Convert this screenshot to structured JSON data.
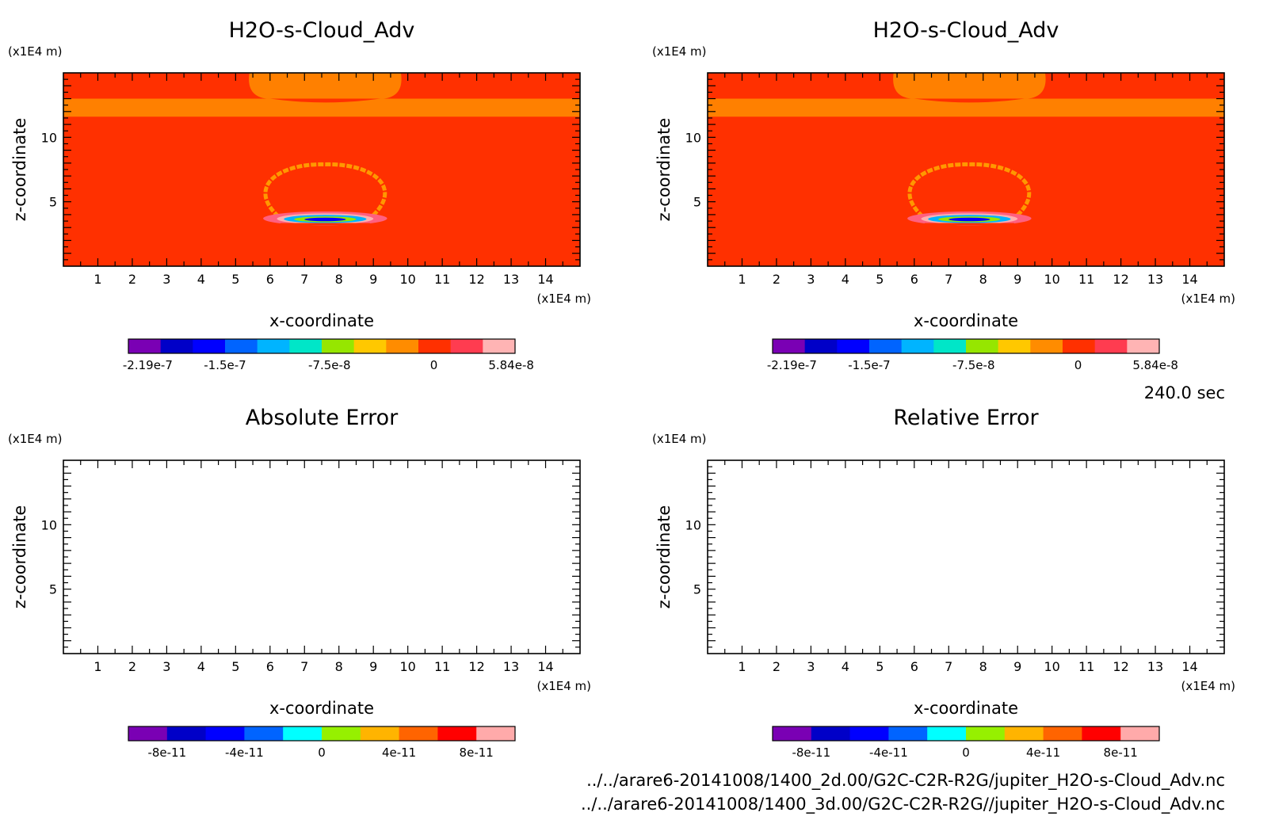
{
  "figure": {
    "time_label": "240.0 sec",
    "file_lines": [
      "../../arare6-20141008/1400_2d.00/G2C-C2R-R2G/jupiter_H2O-s-Cloud_Adv.nc",
      "../../arare6-20141008/1400_3d.00/G2C-C2R-R2G//jupiter_H2O-s-Cloud_Adv.nc"
    ]
  },
  "colors": {
    "background_field": "#ff3000",
    "cloud_band": "#ff8000",
    "contour_ring": "#ff9800"
  },
  "chart_data": [
    {
      "type": "heatmap",
      "title": "H2O-s-Cloud_Adv",
      "xlabel": "x-coordinate",
      "ylabel": "z-coordinate",
      "x_unit": "(x1E4 m)",
      "y_unit": "(x1E4 m)",
      "xlim": [
        0,
        15
      ],
      "ylim": [
        0,
        15
      ],
      "x_ticks": [
        "1",
        "2",
        "3",
        "4",
        "5",
        "6",
        "7",
        "8",
        "9",
        "10",
        "11",
        "12",
        "13",
        "14"
      ],
      "y_ticks": [
        "5",
        "10"
      ],
      "colorbar": {
        "colors": [
          "#7a00b4",
          "#0000c8",
          "#0000ff",
          "#0064ff",
          "#00b4ff",
          "#00e6c8",
          "#96e600",
          "#ffc800",
          "#ff8c00",
          "#ff3000",
          "#ff3c50",
          "#ffb4b4"
        ],
        "labels": [
          "-2.19e-7",
          "-1.5e-7",
          "-7.5e-8",
          "0",
          "5.84e-8"
        ]
      },
      "field": "cloud"
    },
    {
      "type": "heatmap",
      "title": "H2O-s-Cloud_Adv",
      "xlabel": "x-coordinate",
      "ylabel": "z-coordinate",
      "x_unit": "(x1E4 m)",
      "y_unit": "(x1E4 m)",
      "xlim": [
        0,
        15
      ],
      "ylim": [
        0,
        15
      ],
      "x_ticks": [
        "1",
        "2",
        "3",
        "4",
        "5",
        "6",
        "7",
        "8",
        "9",
        "10",
        "11",
        "12",
        "13",
        "14"
      ],
      "y_ticks": [
        "5",
        "10"
      ],
      "colorbar": {
        "colors": [
          "#7a00b4",
          "#0000c8",
          "#0000ff",
          "#0064ff",
          "#00b4ff",
          "#00e6c8",
          "#96e600",
          "#ffc800",
          "#ff8c00",
          "#ff3000",
          "#ff3c50",
          "#ffb4b4"
        ],
        "labels": [
          "-2.19e-7",
          "-1.5e-7",
          "-7.5e-8",
          "0",
          "5.84e-8"
        ]
      },
      "field": "cloud"
    },
    {
      "type": "heatmap",
      "title": "Absolute Error",
      "xlabel": "x-coordinate",
      "ylabel": "z-coordinate",
      "x_unit": "(x1E4 m)",
      "y_unit": "(x1E4 m)",
      "xlim": [
        0,
        15
      ],
      "ylim": [
        0,
        15
      ],
      "x_ticks": [
        "1",
        "2",
        "3",
        "4",
        "5",
        "6",
        "7",
        "8",
        "9",
        "10",
        "11",
        "12",
        "13",
        "14"
      ],
      "y_ticks": [
        "5",
        "10"
      ],
      "colorbar": {
        "colors": [
          "#7a00b4",
          "#0000c8",
          "#0000ff",
          "#0064ff",
          "#00ffff",
          "#96f000",
          "#ffb400",
          "#ff6400",
          "#ff0000",
          "#ffaaaa"
        ],
        "labels": [
          "-8e-11",
          "-4e-11",
          "0",
          "4e-11",
          "8e-11"
        ]
      },
      "field": "empty"
    },
    {
      "type": "heatmap",
      "title": "Relative Error",
      "xlabel": "x-coordinate",
      "ylabel": "z-coordinate",
      "x_unit": "(x1E4 m)",
      "y_unit": "(x1E4 m)",
      "xlim": [
        0,
        15
      ],
      "ylim": [
        0,
        15
      ],
      "x_ticks": [
        "1",
        "2",
        "3",
        "4",
        "5",
        "6",
        "7",
        "8",
        "9",
        "10",
        "11",
        "12",
        "13",
        "14"
      ],
      "y_ticks": [
        "5",
        "10"
      ],
      "colorbar": {
        "colors": [
          "#7a00b4",
          "#0000c8",
          "#0000ff",
          "#0064ff",
          "#00ffff",
          "#96f000",
          "#ffb400",
          "#ff6400",
          "#ff0000",
          "#ffaaaa"
        ],
        "labels": [
          "-8e-11",
          "-4e-11",
          "0",
          "4e-11",
          "8e-11"
        ]
      },
      "field": "empty"
    }
  ]
}
